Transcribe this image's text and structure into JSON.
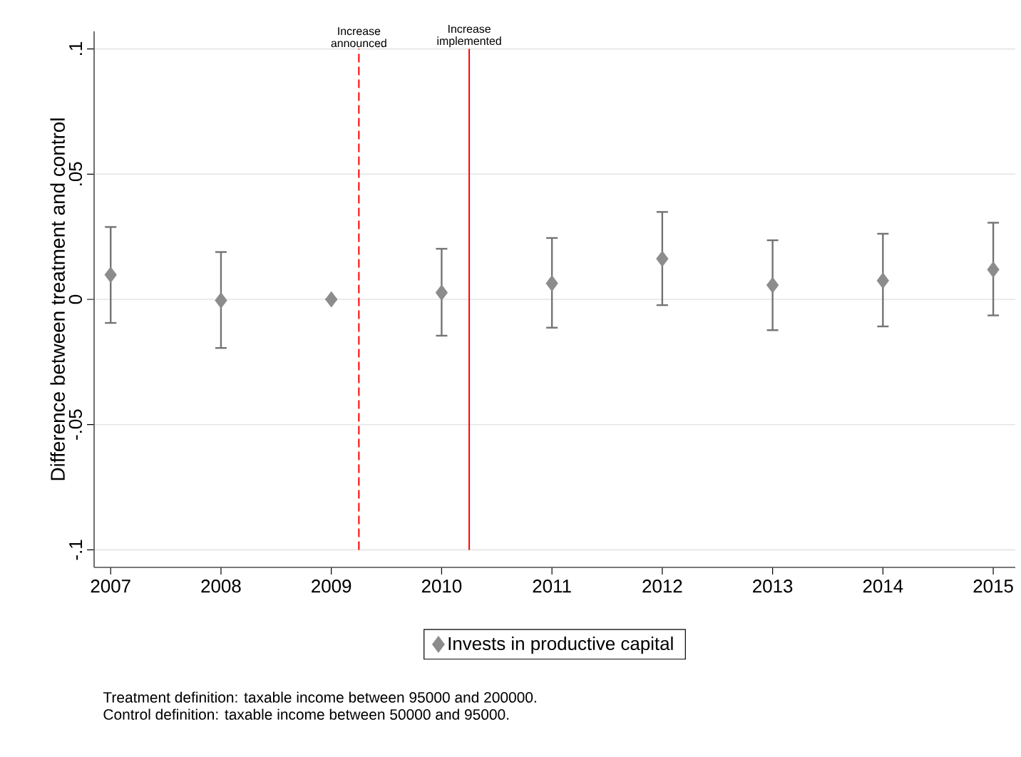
{
  "chart_data": {
    "type": "scatter",
    "ylabel": "Difference between treatment and control",
    "x": [
      2007,
      2008,
      2009,
      2010,
      2011,
      2012,
      2013,
      2014,
      2015
    ],
    "series": [
      {
        "name": "Invests in productive capital",
        "color": "#8c8c8c",
        "values": [
          0.0098,
          -0.0004,
          0,
          0.0027,
          0.0064,
          0.0162,
          0.0057,
          0.0075,
          0.0119
        ],
        "errors": [
          [
            -0.0094,
            0.0289
          ],
          [
            -0.0194,
            0.0189
          ],
          null,
          [
            -0.0145,
            0.0202
          ],
          [
            -0.0113,
            0.0245
          ],
          [
            -0.0023,
            0.0349
          ],
          [
            -0.0123,
            0.0236
          ],
          [
            -0.0108,
            0.0262
          ],
          [
            -0.0064,
            0.0306
          ]
        ]
      }
    ],
    "xlim": [
      2006.85,
      2015.2
    ],
    "ylim": [
      -0.107,
      0.107
    ],
    "xticks": [
      2007,
      2008,
      2009,
      2010,
      2011,
      2012,
      2013,
      2014,
      2015
    ],
    "yticks": [
      {
        "value": -0.1,
        "label": "-.1"
      },
      {
        "value": -0.05,
        "label": "-.05"
      },
      0,
      {
        "value": 0.05,
        "label": ".05"
      },
      {
        "value": 0.1,
        "label": ".1"
      }
    ],
    "grid": "y",
    "legend": "bottom",
    "marker": "diamond",
    "ref_lines": [
      {
        "axis": "x",
        "value": 2009.25,
        "label": "Increase announced",
        "color": "#ff0000",
        "line_style": "dashed"
      },
      {
        "axis": "x",
        "value": 2010.25,
        "label": "Increase implemented",
        "color": "#ff0000",
        "line_style": "solid"
      }
    ],
    "annotations": [
      "Treatment definition: taxable income between 95000 and 200000.",
      "Control definition: taxable income between 50000 and 95000."
    ]
  }
}
